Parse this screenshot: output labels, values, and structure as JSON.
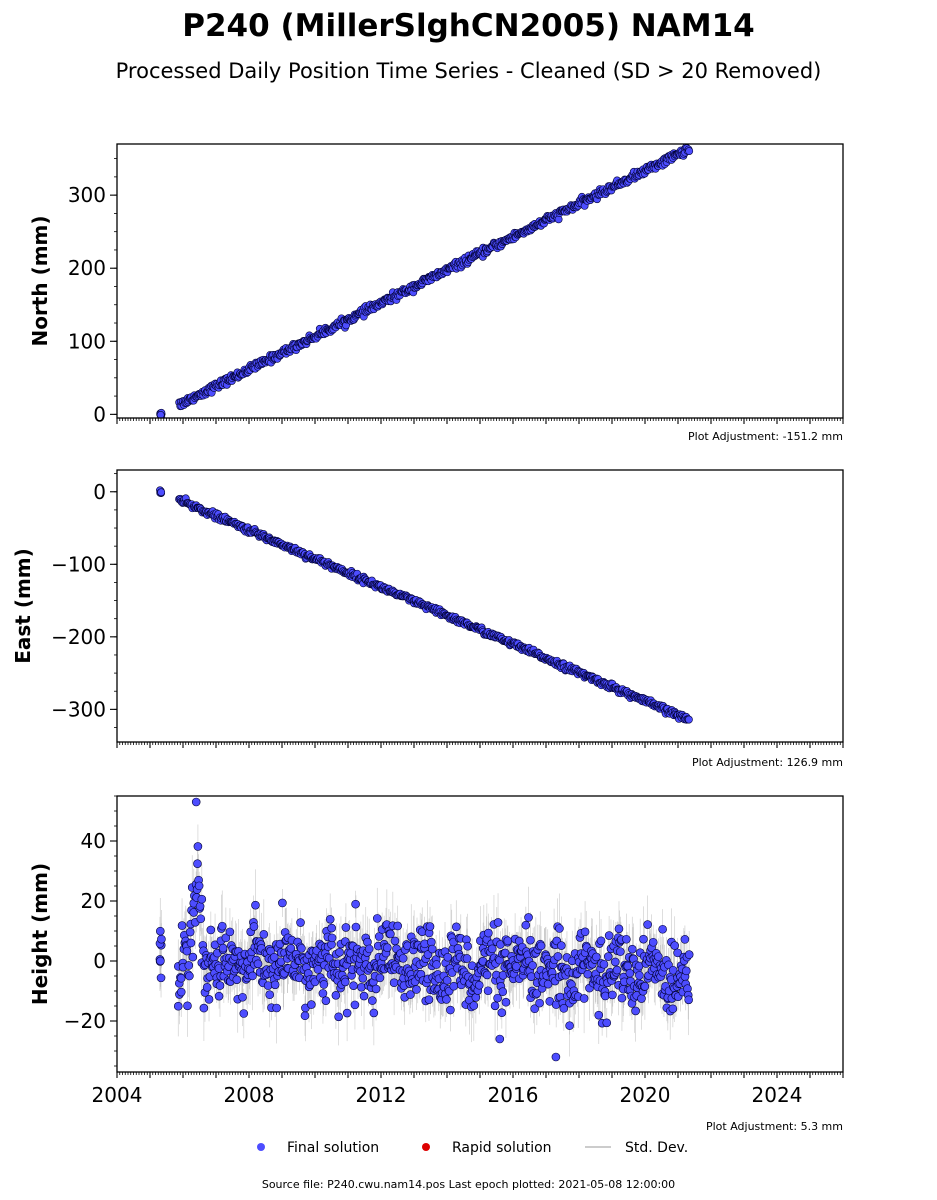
{
  "title": "P240 (MillerSlghCN2005) NAM14",
  "subtitle": "Processed Daily Position Time Series - Cleaned (SD > 20 Removed)",
  "legend": {
    "final": "Final solution",
    "rapid": "Rapid solution",
    "sd": "Std. Dev."
  },
  "colors": {
    "final": "#4d4dff",
    "rapid": "#dd0000",
    "sd": "#aaaaaa",
    "edge": "#000033"
  },
  "footer": "Source file: P240.cwu.nam14.pos  Last epoch plotted: 2021-05-08 12:00:00",
  "chart_data": [
    {
      "type": "scatter",
      "ylabel": "North (mm)",
      "adjustment": "Plot Adjustment: -151.2 mm",
      "xlim": [
        2004,
        2026
      ],
      "ylim": [
        -5,
        370
      ],
      "yticks": [
        0,
        100,
        200,
        300
      ],
      "series": [
        {
          "name": "Final solution",
          "start": [
            2005.3,
            0
          ],
          "end": [
            2021.35,
            364
          ],
          "noise": 2.5
        }
      ]
    },
    {
      "type": "scatter",
      "ylabel": "East (mm)",
      "adjustment": "Plot Adjustment: 126.9 mm",
      "xlim": [
        2004,
        2026
      ],
      "ylim": [
        -345,
        30
      ],
      "yticks": [
        0,
        -100,
        -200,
        -300
      ],
      "yticklabels": [
        "0",
        "−100",
        "−200",
        "−300"
      ],
      "series": [
        {
          "name": "Final solution",
          "start": [
            2005.3,
            0
          ],
          "end": [
            2021.35,
            -315
          ],
          "noise": 2.0
        }
      ]
    },
    {
      "type": "scatter",
      "ylabel": "Height (mm)",
      "adjustment": "Plot Adjustment: 5.3 mm",
      "xlim": [
        2004,
        2026
      ],
      "ylim": [
        -37,
        55
      ],
      "yticks": [
        -20,
        0,
        20,
        40
      ],
      "yticklabels": [
        "−20",
        "0",
        "20",
        "40"
      ],
      "xticks": [
        2004,
        2008,
        2012,
        2016,
        2020,
        2024
      ],
      "xticklabels": [
        "2004",
        "2008",
        "2012",
        "2016",
        "2020",
        "2024"
      ],
      "series": [
        {
          "name": "Final solution",
          "start": [
            2005.3,
            0
          ],
          "end": [
            2021.35,
            -3
          ],
          "noise": 6
        }
      ],
      "annotations": [
        {
          "x": 2006.4,
          "y": 53
        },
        {
          "x": 2017.3,
          "y": -32
        },
        {
          "x": 2015.6,
          "y": -26
        }
      ]
    }
  ]
}
